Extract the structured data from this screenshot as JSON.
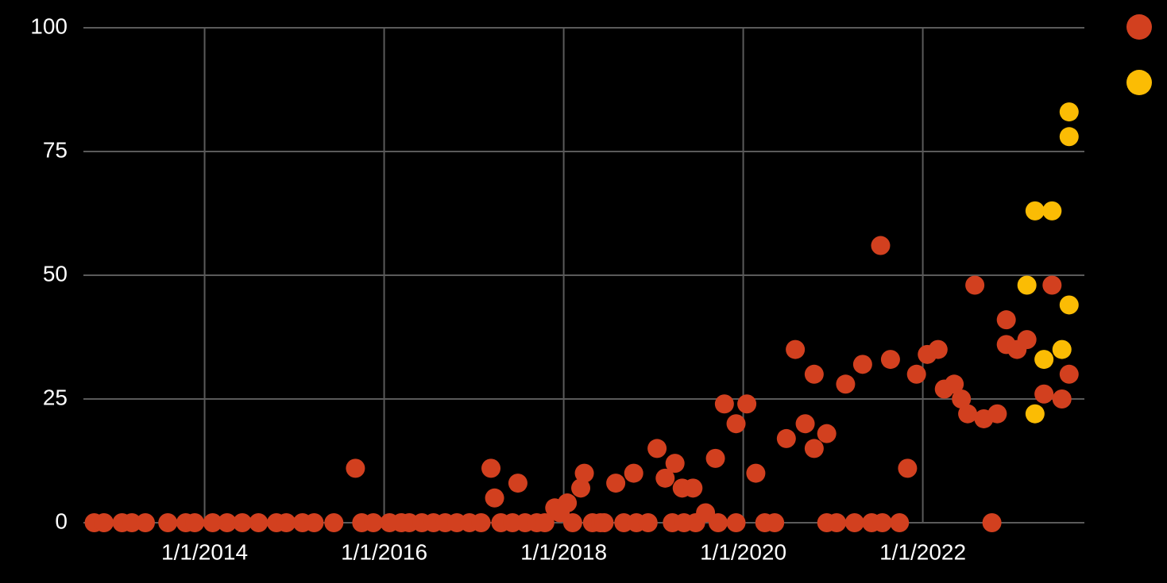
{
  "chart_data": {
    "type": "scatter",
    "xlim": [
      2012.65,
      2023.8
    ],
    "xticks": [
      {
        "value": 2014,
        "label": "1/1/2014"
      },
      {
        "value": 2016,
        "label": "1/1/2016"
      },
      {
        "value": 2018,
        "label": "1/1/2018"
      },
      {
        "value": 2020,
        "label": "1/1/2020"
      },
      {
        "value": 2022,
        "label": "1/1/2022"
      }
    ],
    "ylim": [
      0,
      100
    ],
    "yticks": [
      0,
      25,
      50,
      75,
      100
    ],
    "grid": true,
    "legend": "right",
    "series": [
      {
        "color": "#d2401f",
        "x": [
          2012.77,
          2012.88,
          2013.08,
          2013.19,
          2013.34,
          2013.59,
          2013.79,
          2013.89,
          2014.09,
          2014.25,
          2014.42,
          2014.6,
          2014.8,
          2014.91,
          2015.09,
          2015.22,
          2015.44,
          2015.68,
          2015.75,
          2015.88,
          2016.06,
          2016.19,
          2016.28,
          2016.42,
          2016.55,
          2016.68,
          2016.81,
          2016.95,
          2017.08,
          2017.19,
          2017.23,
          2017.3,
          2017.43,
          2017.49,
          2017.57,
          2017.7,
          2017.79,
          2017.9,
          2017.96,
          2018.04,
          2018.1,
          2018.19,
          2018.23,
          2018.32,
          2018.41,
          2018.45,
          2018.58,
          2018.67,
          2018.78,
          2018.81,
          2018.94,
          2019.04,
          2019.13,
          2019.21,
          2019.24,
          2019.32,
          2019.34,
          2019.44,
          2019.47,
          2019.58,
          2019.69,
          2019.72,
          2019.79,
          2019.92,
          2019.92,
          2020.04,
          2020.14,
          2020.24,
          2020.35,
          2020.48,
          2020.58,
          2020.69,
          2020.79,
          2020.79,
          2020.93,
          2020.93,
          2021.04,
          2021.14,
          2021.24,
          2021.33,
          2021.43,
          2021.53,
          2021.55,
          2021.64,
          2021.74,
          2021.83,
          2021.93,
          2022.05,
          2022.17,
          2022.24,
          2022.35,
          2022.43,
          2022.5,
          2022.58,
          2022.68,
          2022.77,
          2022.83,
          2022.93,
          2022.93,
          2023.05,
          2023.16,
          2023.35,
          2023.44,
          2023.55,
          2023.63
        ],
        "values": [
          0,
          0,
          0,
          0,
          0,
          0,
          0,
          0,
          0,
          0,
          0,
          0,
          0,
          0,
          0,
          0,
          0,
          11,
          0,
          0,
          0,
          0,
          0,
          0,
          0,
          0,
          0,
          0,
          0,
          11,
          5,
          0,
          0,
          8,
          0,
          0,
          0,
          3,
          2,
          4,
          0,
          7,
          10,
          0,
          0,
          0,
          8,
          0,
          10,
          0,
          0,
          15,
          9,
          0,
          12,
          7,
          0,
          7,
          0,
          2,
          13,
          0,
          24,
          20,
          0,
          24,
          10,
          0,
          0,
          17,
          35,
          20,
          30,
          15,
          18,
          0,
          0,
          28,
          0,
          32,
          0,
          56,
          0,
          33,
          0,
          11,
          30,
          34,
          35,
          27,
          28,
          25,
          22,
          48,
          21,
          0,
          22,
          41,
          36,
          35,
          37,
          26,
          48,
          25,
          30
        ]
      },
      {
        "color": "#fbbc04",
        "x": [
          2023.16,
          2023.25,
          2023.25,
          2023.35,
          2023.44,
          2023.55,
          2023.63,
          2023.63,
          2023.63
        ],
        "values": [
          48,
          63,
          22,
          33,
          63,
          35,
          83,
          78,
          44
        ]
      }
    ]
  }
}
